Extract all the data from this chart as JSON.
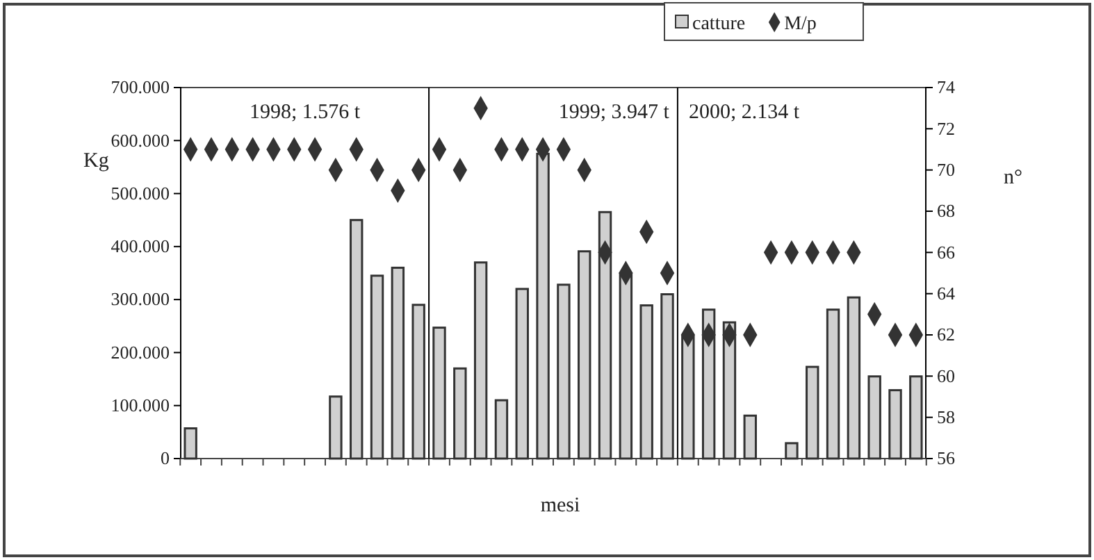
{
  "chart_data": {
    "type": "bar",
    "xlabel": "mesi",
    "ylabel": "Kg",
    "y2label": "n°",
    "categories": [
      null,
      null,
      null,
      null,
      null,
      null,
      null,
      null,
      null,
      null,
      null,
      null,
      null,
      null,
      null,
      null,
      null,
      null,
      null,
      null,
      null,
      null,
      null,
      null,
      null,
      null,
      null,
      null,
      null,
      null,
      null,
      null,
      null,
      null,
      null,
      null
    ],
    "series": [
      {
        "name": "catture",
        "color": "#d0d0d0",
        "values": [
          57000,
          0,
          0,
          0,
          0,
          0,
          0,
          117000,
          450000,
          345000,
          360000,
          290000,
          247000,
          170000,
          370000,
          110000,
          320000,
          575000,
          328000,
          391000,
          465000,
          349000,
          289000,
          310000,
          230000,
          281000,
          257000,
          81000,
          0,
          29000,
          173000,
          281000,
          304000,
          155000,
          129000,
          155000
        ]
      },
      {
        "name": "M/p",
        "type": "scatter",
        "axis": "y2",
        "color": "#333333",
        "values": [
          71,
          71,
          71,
          71,
          71,
          71,
          71,
          70,
          71,
          70,
          69,
          70,
          71,
          70,
          73,
          71,
          71,
          71,
          71,
          70,
          66,
          65,
          67,
          65,
          62,
          62,
          62,
          62,
          66,
          66,
          66,
          66,
          66,
          63,
          62,
          62
        ]
      }
    ],
    "ylim": [
      0,
      700000
    ],
    "yticks": [
      {
        "value": 0,
        "label": "0"
      },
      {
        "value": 100000,
        "label": "100.000"
      },
      {
        "value": 200000,
        "label": "200.000"
      },
      {
        "value": 300000,
        "label": "300.000"
      },
      {
        "value": 400000,
        "label": "400.000"
      },
      {
        "value": 500000,
        "label": "500.000"
      },
      {
        "value": 600000,
        "label": "600.000"
      },
      {
        "value": 700000,
        "label": "700.000"
      }
    ],
    "y2lim": [
      56,
      74
    ],
    "y2ticks": [
      56,
      58,
      60,
      62,
      64,
      66,
      68,
      70,
      72,
      74
    ],
    "annotations": [
      "1998; 1.576 t",
      "1999; 3.947 t",
      "2000; 2.134 t"
    ],
    "marker": "diamond",
    "legend": "top right",
    "grid": false
  }
}
